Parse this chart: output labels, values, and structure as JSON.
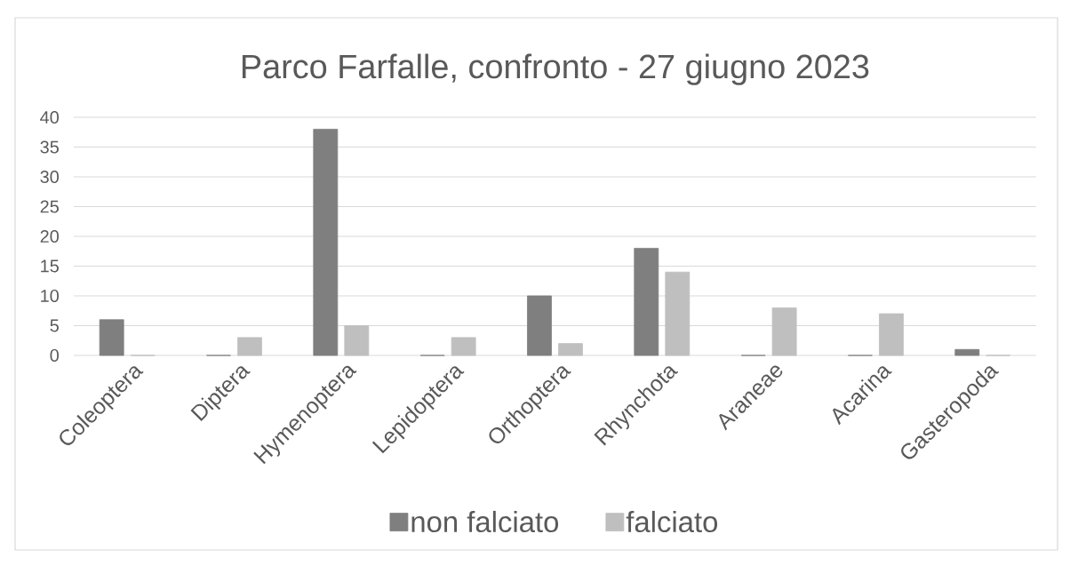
{
  "chart_data": {
    "type": "bar",
    "title": "Parco Farfalle, confronto - 27 giugno 2023",
    "categories": [
      "Coleoptera",
      "Diptera",
      "Hymenoptera",
      "Lepidoptera",
      "Orthoptera",
      "Rhynchota",
      "Araneae",
      "Acarina",
      "Gasteropoda"
    ],
    "series": [
      {
        "name": "non falciato",
        "color": "#7f7f7f",
        "values": [
          6,
          0,
          38,
          0,
          10,
          18,
          0,
          0,
          1
        ]
      },
      {
        "name": "falciato",
        "color": "#bfbfbf",
        "values": [
          0,
          3,
          5,
          3,
          2,
          14,
          8,
          7,
          0
        ]
      }
    ],
    "ylim": [
      0,
      40
    ],
    "yticks": [
      0,
      5,
      10,
      15,
      20,
      25,
      30,
      35,
      40
    ],
    "grid": "y",
    "legend": "bottom"
  }
}
